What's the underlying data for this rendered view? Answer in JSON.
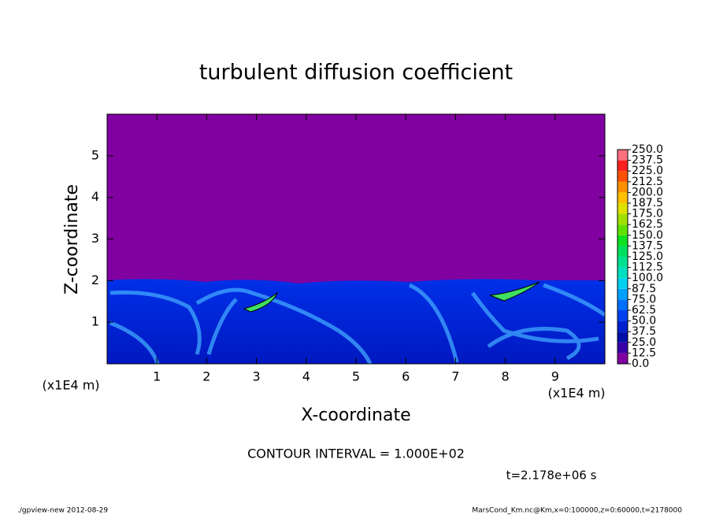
{
  "chart_data": {
    "type": "contour",
    "title": "turbulent diffusion coefficient",
    "x_label": "X-coordinate",
    "y_label": "Z-coordinate",
    "x_unit_label": "(x1E4 m)",
    "y_unit_label": "(x1E4 m)",
    "xlim": [
      0,
      10
    ],
    "ylim": [
      0,
      6
    ],
    "xticks": [
      1,
      2,
      3,
      4,
      5,
      6,
      7,
      8,
      9
    ],
    "yticks": [
      1,
      2,
      3,
      4,
      5
    ],
    "colorbar": {
      "levels": [
        {
          "value": 0,
          "label": "0.0"
        },
        12.5,
        {
          "value": 25,
          "label": "25.0"
        },
        37.5,
        {
          "value": 50,
          "label": "50.0"
        },
        62.5,
        {
          "value": 75,
          "label": "75.0"
        },
        87.5,
        {
          "value": 100,
          "label": "100.0"
        },
        112.5,
        {
          "value": 125,
          "label": "125.0"
        },
        137.5,
        {
          "value": 150,
          "label": "150.0"
        },
        162.5,
        {
          "value": 175,
          "label": "175.0"
        },
        187.5,
        {
          "value": 200,
          "label": "200.0"
        },
        212.5,
        {
          "value": 225,
          "label": "225.0"
        },
        237.5,
        {
          "value": 250,
          "label": "250.0"
        }
      ],
      "colors": [
        "#8000a0",
        "#3a00a8",
        "#0010a8",
        "#0020d0",
        "#0040f0",
        "#0070ff",
        "#00a0ff",
        "#00cff0",
        "#00e0c0",
        "#00e090",
        "#00e060",
        "#10e020",
        "#60e000",
        "#a0e000",
        "#e0e000",
        "#ffc000",
        "#ff9000",
        "#ff5000",
        "#ff2020",
        "#ff7080"
      ]
    },
    "contour_interval": "CONTOUR INTERVAL = 1.000E+02",
    "time_label": "t=2.178e+06 s",
    "footer_left": "./gpview-new  2012-08-29",
    "footer_right": "MarsCond_Km.nc@Km,x=0:100000,z=0:60000,t=2178000"
  }
}
